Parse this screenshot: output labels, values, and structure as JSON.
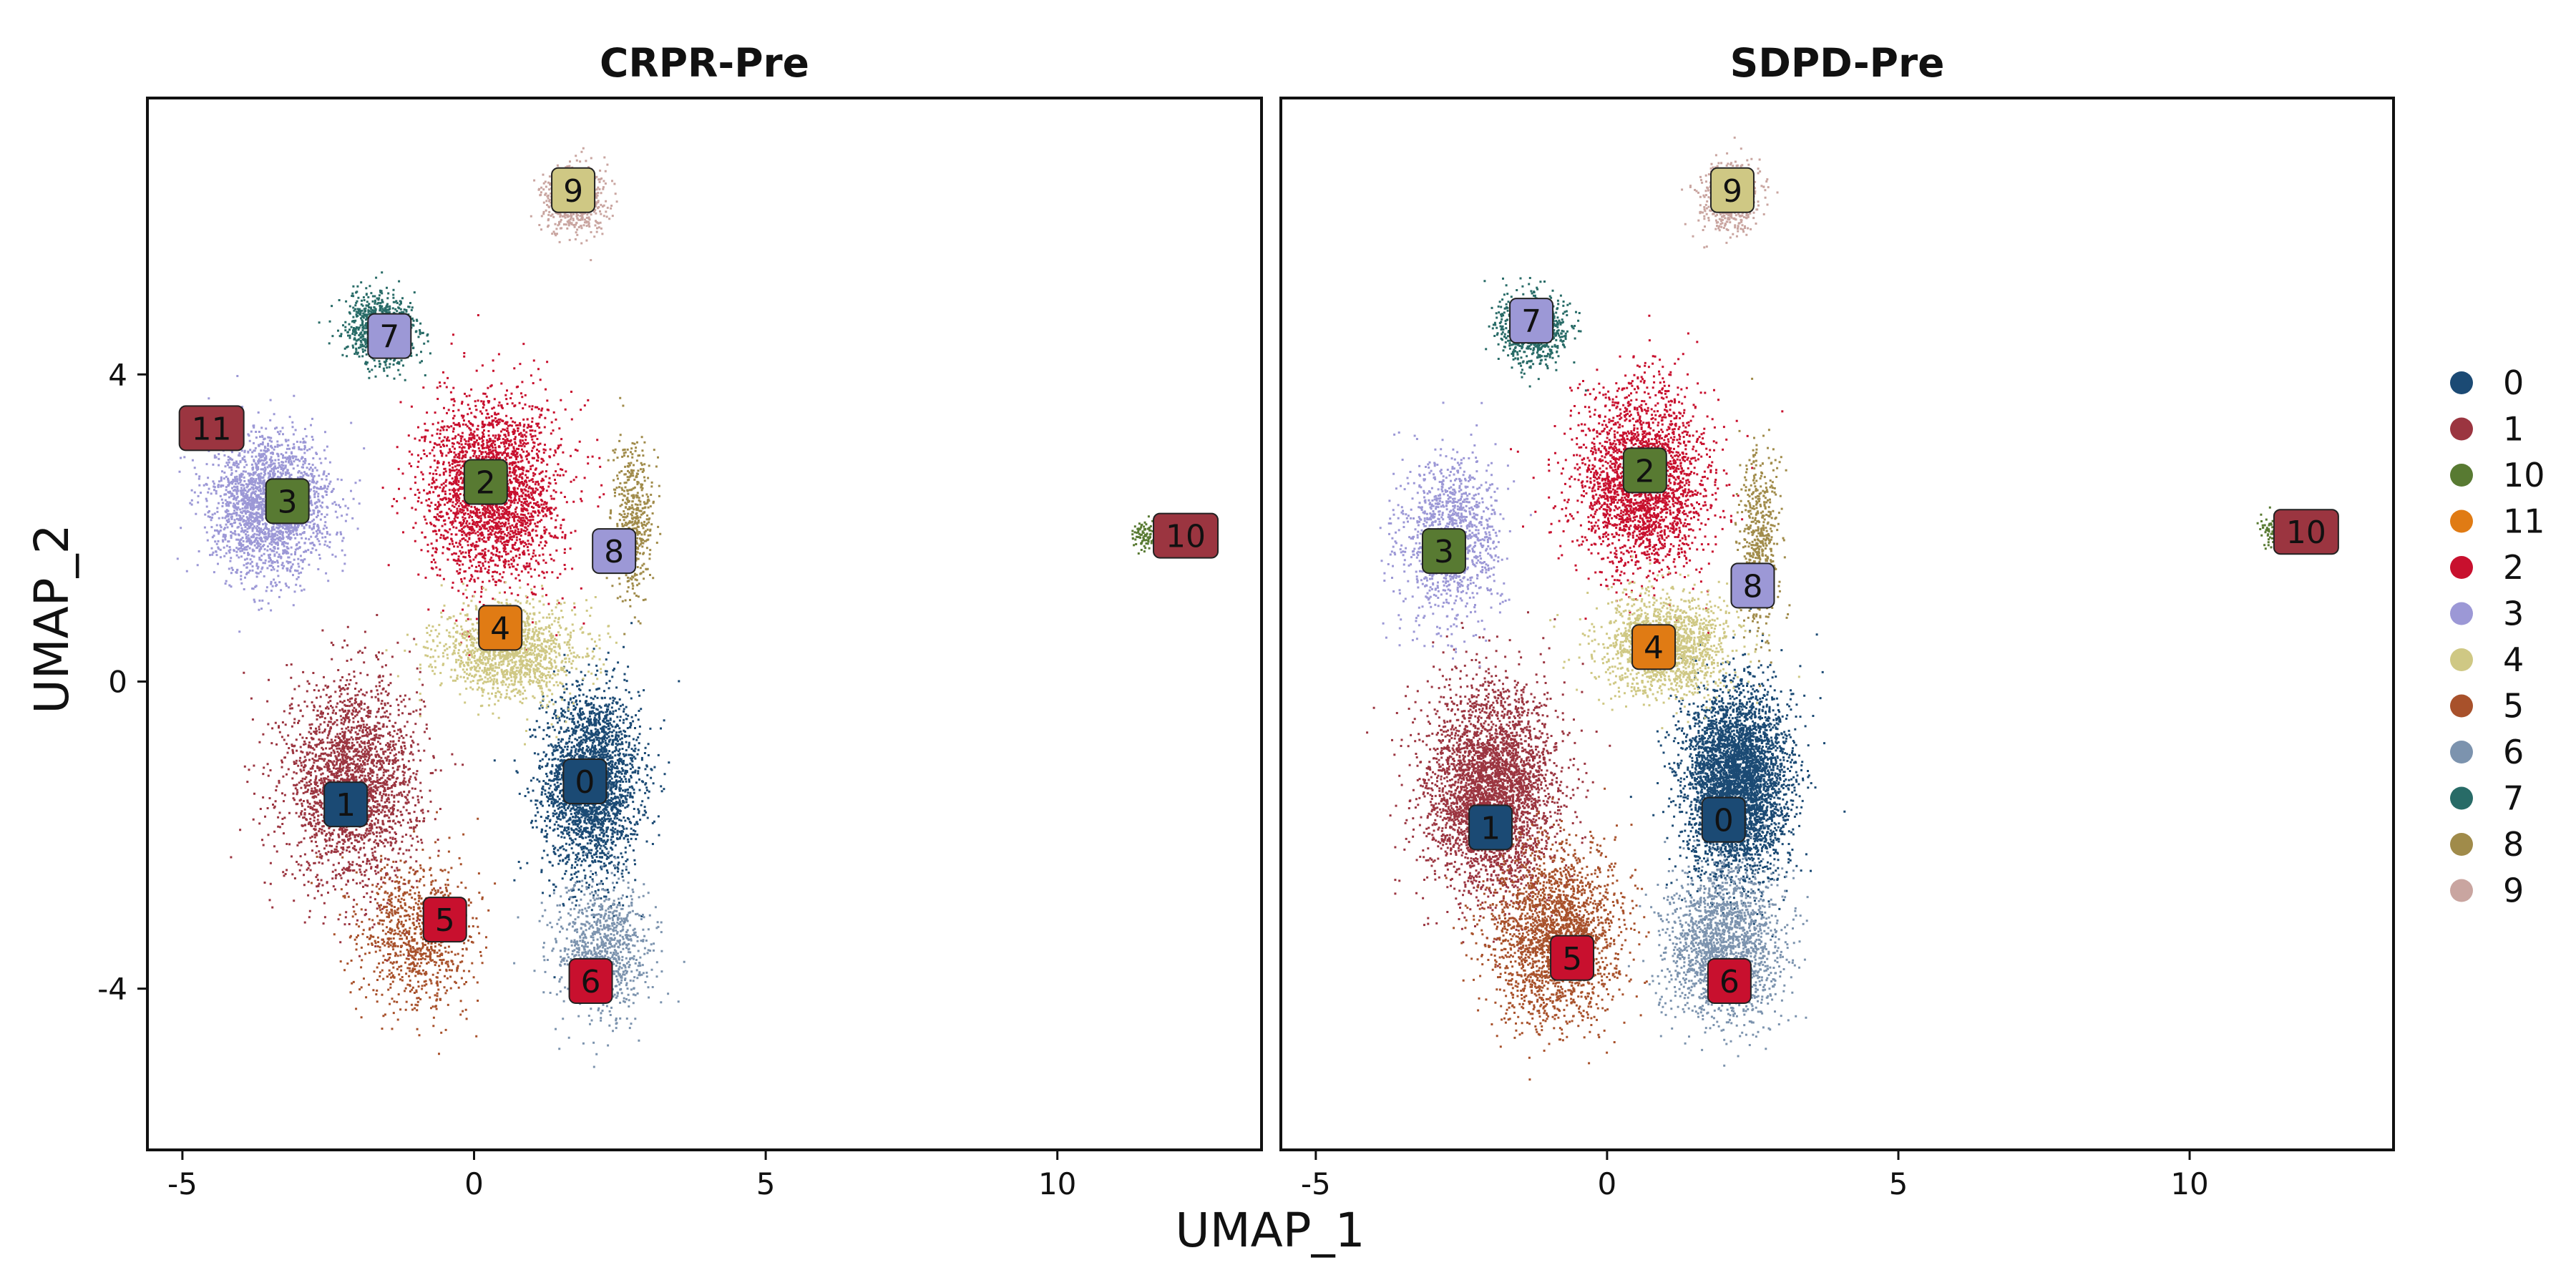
{
  "chart_data": {
    "type": "scatter",
    "xlabel": "UMAP_1",
    "ylabel": "UMAP_2",
    "xlim": [
      -5.6,
      13.5
    ],
    "ylim": [
      -6.1,
      7.6
    ],
    "xticks": [
      -5,
      0,
      5,
      10
    ],
    "xtick_labels": [
      "-5",
      "0",
      "5",
      "10"
    ],
    "yticks": [
      -4,
      0,
      4
    ],
    "ytick_labels": [
      "-4",
      "0",
      "4"
    ],
    "grid": false,
    "legend_position": "right",
    "legend": [
      {
        "label": "0",
        "color": "#1b4a74"
      },
      {
        "label": "1",
        "color": "#9b3540"
      },
      {
        "label": "10",
        "color": "#587a32"
      },
      {
        "label": "11",
        "color": "#e07b14"
      },
      {
        "label": "2",
        "color": "#c8102e"
      },
      {
        "label": "3",
        "color": "#9c98d6"
      },
      {
        "label": "4",
        "color": "#cfc884"
      },
      {
        "label": "5",
        "color": "#a8512b"
      },
      {
        "label": "6",
        "color": "#7c93ae"
      },
      {
        "label": "7",
        "color": "#286b67"
      },
      {
        "label": "8",
        "color": "#a08b4a"
      },
      {
        "label": "9",
        "color": "#c9a5a0"
      }
    ],
    "panels": [
      {
        "title": "CRPR-Pre",
        "clusters": [
          {
            "cluster": "0",
            "center": [
              2.0,
              -1.3
            ],
            "spread": [
              0.75,
              1.1
            ],
            "n": 2600
          },
          {
            "cluster": "1",
            "center": [
              -2.1,
              -1.3
            ],
            "spread": [
              1.05,
              1.2
            ],
            "n": 2400
          },
          {
            "cluster": "2",
            "center": [
              0.3,
              2.5
            ],
            "spread": [
              1.05,
              1.1
            ],
            "n": 2600
          },
          {
            "cluster": "3",
            "center": [
              -3.5,
              2.3
            ],
            "spread": [
              0.9,
              0.8
            ],
            "n": 2300
          },
          {
            "cluster": "4",
            "center": [
              0.6,
              0.4
            ],
            "spread": [
              1.1,
              0.55
            ],
            "n": 1400
          },
          {
            "cluster": "5",
            "center": [
              -1.0,
              -3.3
            ],
            "spread": [
              0.9,
              0.9
            ],
            "n": 900
          },
          {
            "cluster": "6",
            "center": [
              2.2,
              -3.5
            ],
            "spread": [
              0.75,
              0.8
            ],
            "n": 900
          },
          {
            "cluster": "7",
            "center": [
              -1.6,
              4.6
            ],
            "spread": [
              0.55,
              0.4
            ],
            "n": 900
          },
          {
            "cluster": "8",
            "center": [
              2.7,
              2.1
            ],
            "spread": [
              0.3,
              0.9
            ],
            "n": 500
          },
          {
            "cluster": "9",
            "center": [
              1.7,
              6.3
            ],
            "spread": [
              0.5,
              0.4
            ],
            "n": 650
          },
          {
            "cluster": "10",
            "center": [
              11.5,
              1.95
            ],
            "spread": [
              0.2,
              0.2
            ],
            "n": 90
          }
        ],
        "cluster_labels": [
          {
            "text": "0",
            "x": 1.9,
            "y": -1.3,
            "fill": "#1b4a74"
          },
          {
            "text": "1",
            "x": -2.2,
            "y": -1.6,
            "fill": "#1b4a74"
          },
          {
            "text": "2",
            "x": 0.2,
            "y": 2.6,
            "fill": "#587a32"
          },
          {
            "text": "3",
            "x": -3.2,
            "y": 2.35,
            "fill": "#587a32"
          },
          {
            "text": "4",
            "x": 0.45,
            "y": 0.7,
            "fill": "#e07b14"
          },
          {
            "text": "5",
            "x": -0.5,
            "y": -3.1,
            "fill": "#c8102e"
          },
          {
            "text": "6",
            "x": 2.0,
            "y": -3.9,
            "fill": "#c8102e"
          },
          {
            "text": "7",
            "x": -1.45,
            "y": 4.5,
            "fill": "#9c98d6"
          },
          {
            "text": "8",
            "x": 2.4,
            "y": 1.7,
            "fill": "#9c98d6"
          },
          {
            "text": "9",
            "x": 1.7,
            "y": 6.4,
            "fill": "#cfc884"
          },
          {
            "text": "10",
            "x": 12.2,
            "y": 1.9,
            "fill": "#9b3540"
          },
          {
            "text": "11",
            "x": -4.5,
            "y": 3.3,
            "fill": "#9b3540"
          }
        ]
      },
      {
        "title": "SDPD-Pre",
        "clusters": [
          {
            "cluster": "0",
            "center": [
              2.2,
              -1.3
            ],
            "spread": [
              0.8,
              1.1
            ],
            "n": 4200
          },
          {
            "cluster": "1",
            "center": [
              -2.0,
              -1.4
            ],
            "spread": [
              1.0,
              1.2
            ],
            "n": 3600
          },
          {
            "cluster": "2",
            "center": [
              0.6,
              2.6
            ],
            "spread": [
              1.0,
              1.1
            ],
            "n": 2500
          },
          {
            "cluster": "3",
            "center": [
              -2.7,
              1.9
            ],
            "spread": [
              0.8,
              1.0
            ],
            "n": 1100
          },
          {
            "cluster": "4",
            "center": [
              1.0,
              0.5
            ],
            "spread": [
              1.0,
              0.6
            ],
            "n": 1600
          },
          {
            "cluster": "5",
            "center": [
              -0.9,
              -3.3
            ],
            "spread": [
              1.0,
              1.0
            ],
            "n": 2200
          },
          {
            "cluster": "6",
            "center": [
              2.0,
              -3.4
            ],
            "spread": [
              0.9,
              0.9
            ],
            "n": 1800
          },
          {
            "cluster": "7",
            "center": [
              -1.3,
              4.6
            ],
            "spread": [
              0.55,
              0.4
            ],
            "n": 800
          },
          {
            "cluster": "8",
            "center": [
              2.6,
              1.8
            ],
            "spread": [
              0.3,
              1.0
            ],
            "n": 500
          },
          {
            "cluster": "9",
            "center": [
              2.1,
              6.3
            ],
            "spread": [
              0.45,
              0.4
            ],
            "n": 600
          },
          {
            "cluster": "10",
            "center": [
              11.4,
              2.0
            ],
            "spread": [
              0.2,
              0.2
            ],
            "n": 70
          }
        ],
        "cluster_labels": [
          {
            "text": "0",
            "x": 2.0,
            "y": -1.8,
            "fill": "#1b4a74"
          },
          {
            "text": "1",
            "x": -2.0,
            "y": -1.9,
            "fill": "#1b4a74"
          },
          {
            "text": "2",
            "x": 0.65,
            "y": 2.75,
            "fill": "#587a32"
          },
          {
            "text": "3",
            "x": -2.8,
            "y": 1.7,
            "fill": "#587a32"
          },
          {
            "text": "4",
            "x": 0.8,
            "y": 0.45,
            "fill": "#e07b14"
          },
          {
            "text": "5",
            "x": -0.6,
            "y": -3.6,
            "fill": "#c8102e"
          },
          {
            "text": "6",
            "x": 2.1,
            "y": -3.9,
            "fill": "#c8102e"
          },
          {
            "text": "7",
            "x": -1.3,
            "y": 4.7,
            "fill": "#9c98d6"
          },
          {
            "text": "8",
            "x": 2.5,
            "y": 1.25,
            "fill": "#9c98d6"
          },
          {
            "text": "9",
            "x": 2.15,
            "y": 6.4,
            "fill": "#cfc884"
          },
          {
            "text": "10",
            "x": 12.0,
            "y": 1.95,
            "fill": "#9b3540"
          }
        ]
      }
    ]
  }
}
